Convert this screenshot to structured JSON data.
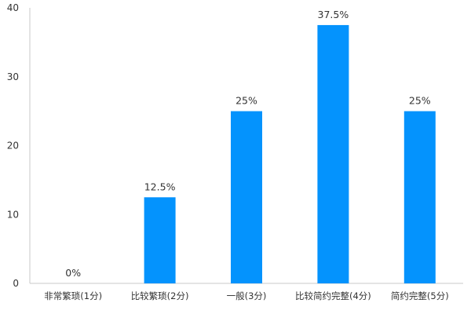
{
  "chart_data": {
    "type": "bar",
    "title": "",
    "xlabel": "",
    "ylabel": "",
    "categories": [
      "非常繁琐(1分)",
      "比较繁琐(2分)",
      "一般(3分)",
      "比较简约完整(4分)",
      "简约完整(5分)"
    ],
    "values": [
      0,
      12.5,
      25,
      37.5,
      25
    ],
    "data_labels": [
      "0%",
      "12.5%",
      "25%",
      "37.5%",
      "25%"
    ],
    "ylim": [
      0,
      40
    ],
    "yticks": [
      0,
      10,
      20,
      30,
      40
    ],
    "ytick_labels": [
      "0",
      "10",
      "20",
      "30",
      "40"
    ],
    "grid": false,
    "legend": "none",
    "colors": {
      "bar": "#0493fd",
      "axis": "#c8c8c8",
      "text": "#333333"
    }
  }
}
